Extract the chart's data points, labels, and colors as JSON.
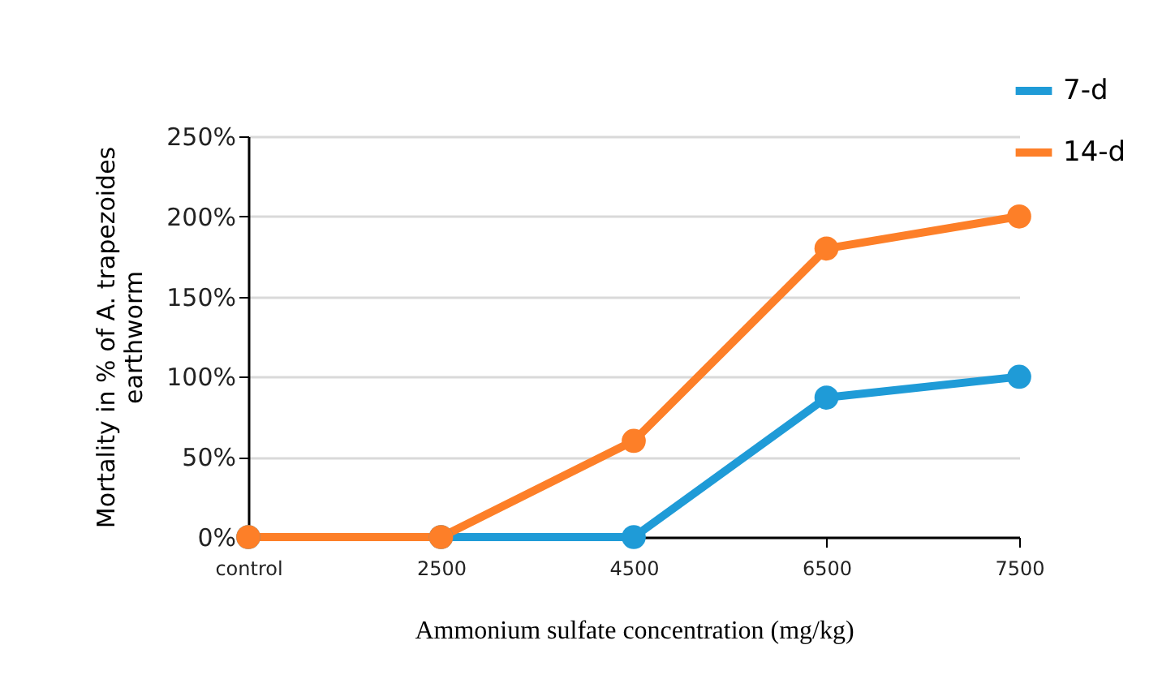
{
  "chart_data": {
    "type": "line",
    "xlabel": "Ammonium sulfate concentration (mg/kg)",
    "ylabel": "Mortality in %  of A. trapezoides\nearthworm",
    "categories": [
      "control",
      "2500",
      "4500",
      "6500",
      "7500"
    ],
    "series": [
      {
        "name": "7-d",
        "color": "#1f9bd7",
        "values": [
          0,
          0,
          0,
          87,
          100
        ]
      },
      {
        "name": "14-d",
        "color": "#fd7f28",
        "values": [
          0,
          0,
          60,
          180,
          200
        ]
      }
    ],
    "ylim": [
      0,
      250
    ],
    "yticks": [
      {
        "value": 0,
        "label": "0%"
      },
      {
        "value": 50,
        "label": "50%"
      },
      {
        "value": 100,
        "label": "100%"
      },
      {
        "value": 150,
        "label": "150%"
      },
      {
        "value": 200,
        "label": "200%"
      },
      {
        "value": 250,
        "label": "250%"
      }
    ],
    "grid": "y",
    "legend": "top right",
    "marker": "circle",
    "line_style": "solid"
  }
}
